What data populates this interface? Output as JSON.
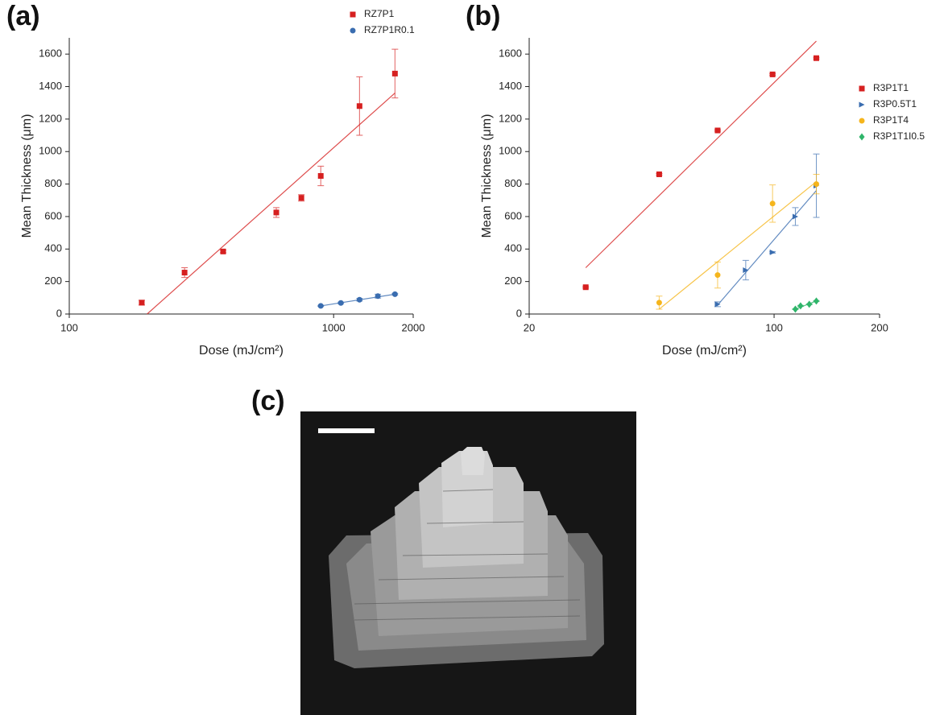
{
  "chart_data": [
    {
      "type": "scatter",
      "panel_label": "(a)",
      "x_label": "Dose (mJ/cm²)",
      "y_label": "Mean Thickness (μm)",
      "xscale": "log",
      "xlim": [
        100,
        2000
      ],
      "xticks": [
        100,
        1000,
        2000
      ],
      "ylim": [
        0,
        1700
      ],
      "yticks": [
        0,
        200,
        400,
        600,
        800,
        1000,
        1200,
        1400,
        1600
      ],
      "legend": "upper right",
      "series": [
        {
          "name": "RZ7P1",
          "color": "#d62020",
          "marker": "square",
          "x": [
            188,
            273,
            382,
            607,
            755,
            894,
            1253,
            1706
          ],
          "values": [
            70,
            255,
            385,
            625,
            715,
            850,
            1280,
            1480
          ],
          "errors": [
            15,
            30,
            8,
            30,
            20,
            60,
            180,
            150
          ],
          "fit": {
            "x": [
              197,
              1706
            ],
            "y": [
              0,
              1360
            ]
          }
        },
        {
          "name": "RZ7P1R0.1",
          "color": "#3a6db0",
          "marker": "circle",
          "x": [
            894,
            1065,
            1253,
            1470,
            1706
          ],
          "values": [
            50,
            68,
            88,
            110,
            122
          ],
          "errors": [
            3,
            5,
            8,
            12,
            5
          ],
          "fit": {
            "x": [
              894,
              1706
            ],
            "y": [
              50,
              122
            ]
          }
        }
      ]
    },
    {
      "type": "scatter",
      "panel_label": "(b)",
      "x_label": "Dose (mJ/cm²)",
      "y_label": "Mean Thickness (μm)",
      "xscale": "log",
      "xlim": [
        20,
        200
      ],
      "xticks": [
        20,
        100,
        200
      ],
      "ylim": [
        0,
        1700
      ],
      "yticks": [
        0,
        200,
        400,
        600,
        800,
        1000,
        1200,
        1400,
        1600
      ],
      "legend": "right",
      "series": [
        {
          "name": "R3P1T1",
          "color": "#d62020",
          "marker": "square",
          "x": [
            29,
            47,
            69,
            99,
            132
          ],
          "values": [
            165,
            860,
            1130,
            1475,
            1575
          ],
          "errors": [
            5,
            5,
            5,
            5,
            5
          ],
          "fit": {
            "x": [
              29,
              132
            ],
            "y": [
              285,
              1680
            ]
          }
        },
        {
          "name": "R3P0.5T1",
          "color": "#3a6db0",
          "marker": "triangle",
          "x": [
            69,
            83,
            99,
            115,
            132
          ],
          "values": [
            60,
            270,
            380,
            600,
            790
          ],
          "errors": [
            15,
            60,
            5,
            55,
            195
          ],
          "fit": {
            "x": [
              69,
              132
            ],
            "y": [
              55,
              760
            ]
          }
        },
        {
          "name": "R3P1T4",
          "color": "#f5b51c",
          "marker": "circle",
          "x": [
            47,
            69,
            99,
            132
          ],
          "values": [
            70,
            240,
            680,
            800
          ],
          "errors": [
            40,
            80,
            115,
            60
          ],
          "fit": {
            "x": [
              47,
              132
            ],
            "y": [
              30,
              815
            ]
          }
        },
        {
          "name": "R3P1T1I0.5",
          "color": "#2fb56a",
          "marker": "diamond",
          "x": [
            115,
            119,
            126,
            132
          ],
          "values": [
            30,
            50,
            60,
            80
          ],
          "errors": [
            3,
            3,
            3,
            3
          ],
          "fit": {
            "x": [
              115,
              132
            ],
            "y": [
              30,
              80
            ]
          }
        }
      ]
    }
  ],
  "photo": {
    "panel_label": "(c)"
  }
}
